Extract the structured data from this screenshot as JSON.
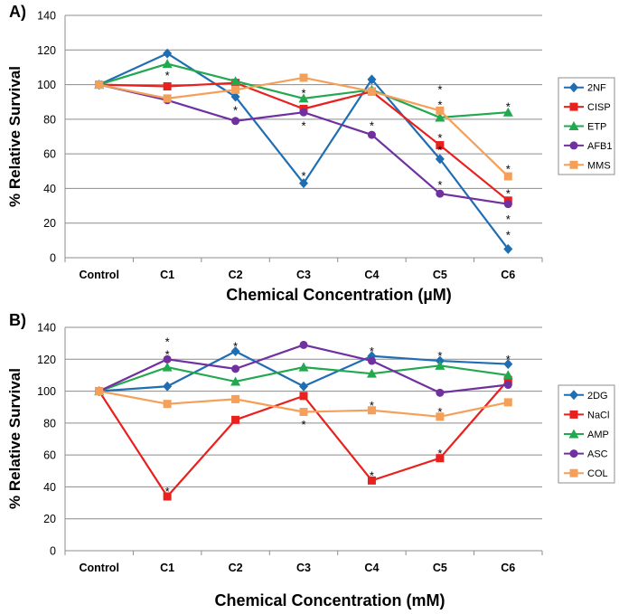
{
  "chart_data": [
    {
      "panel_label": "A)",
      "type": "line",
      "categories": [
        "Control",
        "C1",
        "C2",
        "C3",
        "C4",
        "C5",
        "C6"
      ],
      "xlabel": "Chemical Concentration (µM)",
      "ylabel": "% Relative Survival",
      "ylim": [
        0,
        140
      ],
      "yticks": [
        "0",
        "20",
        "40",
        "60",
        "80",
        "100",
        "120",
        "140"
      ],
      "grid": true,
      "legend_position": "right",
      "series": [
        {
          "name": "2NF",
          "color": "#1F6EB4",
          "marker": "diamond",
          "values": [
            100,
            118,
            93,
            43,
            103,
            57,
            5
          ]
        },
        {
          "name": "CISP",
          "color": "#E8201E",
          "marker": "square",
          "values": [
            100,
            99,
            101,
            86,
            96,
            65,
            33
          ]
        },
        {
          "name": "ETP",
          "color": "#22A84E",
          "marker": "triangle",
          "values": [
            100,
            112,
            102,
            92,
            97,
            81,
            84
          ]
        },
        {
          "name": "AFB1",
          "color": "#7030A0",
          "marker": "circle",
          "values": [
            100,
            91,
            79,
            84,
            71,
            37,
            31
          ]
        },
        {
          "name": "MMS",
          "color": "#F4A05A",
          "marker": "square",
          "values": [
            100,
            92,
            97,
            104,
            96,
            85,
            47
          ]
        }
      ],
      "annotations": [
        {
          "text": "*",
          "category": "C1",
          "y": 107
        },
        {
          "text": "*",
          "category": "C2",
          "y": 87
        },
        {
          "text": "*",
          "category": "C3",
          "y": 97
        },
        {
          "text": "*",
          "category": "C3",
          "y": 78
        },
        {
          "text": "*",
          "category": "C3",
          "y": 49
        },
        {
          "text": "*",
          "category": "C4",
          "y": 78
        },
        {
          "text": "*",
          "category": "C5",
          "y": 99
        },
        {
          "text": "*",
          "category": "C5",
          "y": 90
        },
        {
          "text": "*",
          "category": "C5",
          "y": 71
        },
        {
          "text": "*",
          "category": "C5",
          "y": 64
        },
        {
          "text": "*",
          "category": "C5",
          "y": 44
        },
        {
          "text": "*",
          "category": "C6",
          "y": 89
        },
        {
          "text": "*",
          "category": "C6",
          "y": 53
        },
        {
          "text": "*",
          "category": "C6",
          "y": 39
        },
        {
          "text": "*",
          "category": "C6",
          "y": 24
        },
        {
          "text": "*",
          "category": "C6",
          "y": 15
        }
      ]
    },
    {
      "panel_label": "B)",
      "type": "line",
      "categories": [
        "Control",
        "C1",
        "C2",
        "C3",
        "C4",
        "C5",
        "C6"
      ],
      "xlabel": "Chemical Concentration (mM)",
      "ylabel": "% Relative Survival",
      "ylim": [
        0,
        140
      ],
      "yticks": [
        "0",
        "20",
        "40",
        "60",
        "80",
        "100",
        "120",
        "140"
      ],
      "grid": true,
      "legend_position": "right",
      "series": [
        {
          "name": "2DG",
          "color": "#1F6EB4",
          "marker": "diamond",
          "values": [
            100,
            103,
            125,
            103,
            122,
            119,
            117
          ]
        },
        {
          "name": "NaCl",
          "color": "#E8201E",
          "marker": "square",
          "values": [
            100,
            34,
            82,
            97,
            44,
            58,
            107
          ]
        },
        {
          "name": "AMP",
          "color": "#22A84E",
          "marker": "triangle",
          "values": [
            100,
            115,
            106,
            115,
            111,
            116,
            110
          ]
        },
        {
          "name": "ASC",
          "color": "#7030A0",
          "marker": "circle",
          "values": [
            100,
            120,
            114,
            129,
            119,
            99,
            104
          ]
        },
        {
          "name": "COL",
          "color": "#F4A05A",
          "marker": "square",
          "values": [
            100,
            92,
            95,
            87,
            88,
            84,
            93
          ]
        }
      ],
      "annotations": [
        {
          "text": "*",
          "category": "C1",
          "y": 133
        },
        {
          "text": "*",
          "category": "C1",
          "y": 125
        },
        {
          "text": "*",
          "category": "C1",
          "y": 39
        },
        {
          "text": "*",
          "category": "C2",
          "y": 130
        },
        {
          "text": "*",
          "category": "C3",
          "y": 81
        },
        {
          "text": "*",
          "category": "C4",
          "y": 127
        },
        {
          "text": "*",
          "category": "C4",
          "y": 93
        },
        {
          "text": "*",
          "category": "C4",
          "y": 49
        },
        {
          "text": "*",
          "category": "C5",
          "y": 124
        },
        {
          "text": "*",
          "category": "C5",
          "y": 89
        },
        {
          "text": "*",
          "category": "C5",
          "y": 63
        },
        {
          "text": "*",
          "category": "C6",
          "y": 122
        }
      ]
    }
  ]
}
